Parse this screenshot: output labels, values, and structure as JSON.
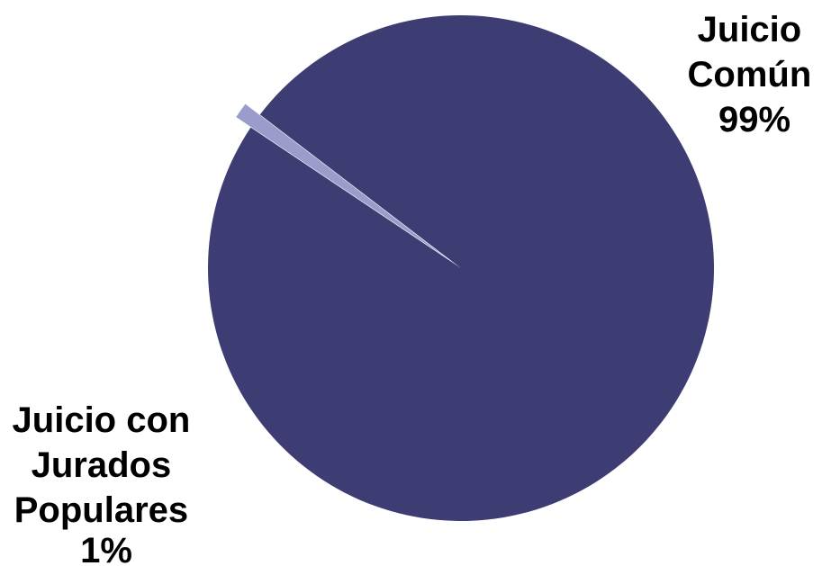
{
  "chart_data": {
    "type": "pie",
    "categories": [
      "Juicio Común",
      "Juicio con Jurados Populares"
    ],
    "values": [
      99,
      1
    ],
    "unit": "%",
    "colors": [
      "#3d3c73",
      "#9c9ccc"
    ],
    "slices": [
      {
        "name": "Juicio Común",
        "value": 99,
        "label_lines": [
          "Juicio",
          "Común",
          "99%"
        ],
        "color": "#3d3c73"
      },
      {
        "name": "Juicio con Jurados Populares",
        "value": 1,
        "label_lines": [
          "Juicio con",
          "Jurados",
          "Populares",
          "1%"
        ],
        "color": "#9c9ccc",
        "exploded": true
      }
    ],
    "legend": "none"
  }
}
